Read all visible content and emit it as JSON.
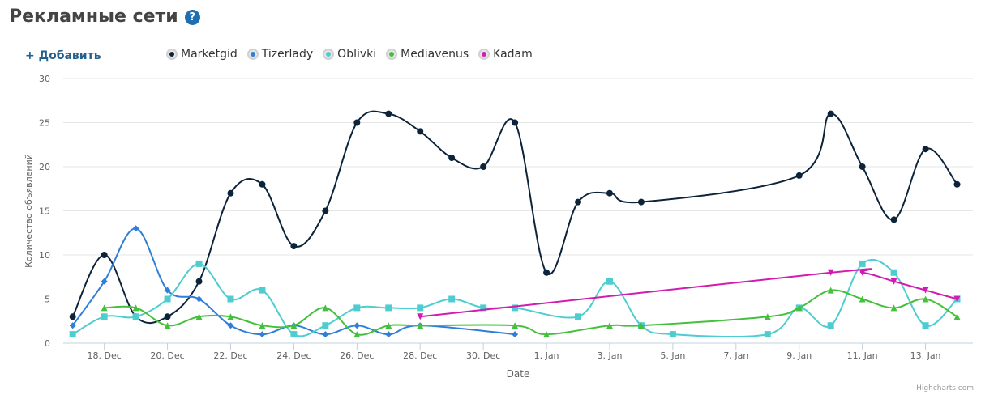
{
  "header": {
    "title": "Рекламные сети",
    "help_icon": "?"
  },
  "toolbar": {
    "add_label": "+ Добавить"
  },
  "credits": "Highcharts.com",
  "chart_data": {
    "type": "line",
    "xlabel": "Date",
    "ylabel": "Количество объявлений",
    "ylim": [
      0,
      30
    ],
    "yticks": [
      0,
      5,
      10,
      15,
      20,
      25,
      30
    ],
    "xlim": [
      16.7,
      45.5
    ],
    "xticks": [
      {
        "day": 18,
        "label": "18. Dec"
      },
      {
        "day": 20,
        "label": "20. Dec"
      },
      {
        "day": 22,
        "label": "22. Dec"
      },
      {
        "day": 24,
        "label": "24. Dec"
      },
      {
        "day": 26,
        "label": "26. Dec"
      },
      {
        "day": 28,
        "label": "28. Dec"
      },
      {
        "day": 30,
        "label": "30. Dec"
      },
      {
        "day": 32,
        "label": "1. Jan"
      },
      {
        "day": 34,
        "label": "3. Jan"
      },
      {
        "day": 36,
        "label": "5. Jan"
      },
      {
        "day": 38,
        "label": "7. Jan"
      },
      {
        "day": 40,
        "label": "9. Jan"
      },
      {
        "day": 42,
        "label": "11. Jan"
      },
      {
        "day": 44,
        "label": "13. Jan"
      }
    ],
    "grid": true,
    "legend_position": "top",
    "series": [
      {
        "name": "Marketgid",
        "color": "#0d233a",
        "marker": "circle",
        "points": [
          [
            17,
            3
          ],
          [
            18,
            10
          ],
          [
            19,
            3
          ],
          [
            20,
            3
          ],
          [
            21,
            7
          ],
          [
            22,
            17
          ],
          [
            23,
            18
          ],
          [
            24,
            11
          ],
          [
            25,
            15
          ],
          [
            26,
            25
          ],
          [
            27,
            26
          ],
          [
            28,
            24
          ],
          [
            29,
            21
          ],
          [
            30,
            20
          ],
          [
            31,
            25
          ],
          [
            32,
            8
          ],
          [
            33,
            16
          ],
          [
            34,
            17
          ],
          [
            35,
            16
          ],
          [
            40,
            19
          ],
          [
            41,
            26
          ],
          [
            42,
            20
          ],
          [
            43,
            14
          ],
          [
            44,
            22
          ],
          [
            45,
            18
          ]
        ]
      },
      {
        "name": "Tizerlady",
        "color": "#2f7ed8",
        "marker": "diamond",
        "points": [
          [
            17,
            2
          ],
          [
            18,
            7
          ],
          [
            19,
            13
          ],
          [
            20,
            6
          ],
          [
            21,
            5
          ],
          [
            22,
            2
          ],
          [
            23,
            1
          ],
          [
            24,
            2
          ],
          [
            25,
            1
          ],
          [
            26,
            2
          ],
          [
            27,
            1
          ],
          [
            28,
            2
          ],
          [
            31,
            1
          ]
        ]
      },
      {
        "name": "Oblivki",
        "color": "#4ecdd0",
        "marker": "square",
        "points": [
          [
            17,
            1
          ],
          [
            18,
            3
          ],
          [
            19,
            3
          ],
          [
            20,
            5
          ],
          [
            21,
            9
          ],
          [
            22,
            5
          ],
          [
            23,
            6
          ],
          [
            24,
            1
          ],
          [
            25,
            2
          ],
          [
            26,
            4
          ],
          [
            27,
            4
          ],
          [
            28,
            4
          ],
          [
            29,
            5
          ],
          [
            30,
            4
          ],
          [
            31,
            4
          ],
          [
            33,
            3
          ],
          [
            34,
            7
          ],
          [
            35,
            2
          ],
          [
            36,
            1
          ],
          [
            39,
            1
          ],
          [
            40,
            4
          ],
          [
            41,
            2
          ],
          [
            42,
            9
          ],
          [
            43,
            8
          ],
          [
            44,
            2
          ],
          [
            45,
            5
          ]
        ]
      },
      {
        "name": "Mediavenus",
        "color": "#44c03c",
        "marker": "triangle",
        "points": [
          [
            18,
            4
          ],
          [
            19,
            4
          ],
          [
            20,
            2
          ],
          [
            21,
            3
          ],
          [
            22,
            3
          ],
          [
            23,
            2
          ],
          [
            24,
            2
          ],
          [
            25,
            4
          ],
          [
            26,
            1
          ],
          [
            27,
            2
          ],
          [
            28,
            2
          ],
          [
            31,
            2
          ],
          [
            32,
            1
          ],
          [
            34,
            2
          ],
          [
            35,
            2
          ],
          [
            39,
            3
          ],
          [
            40,
            4
          ],
          [
            41,
            6
          ],
          [
            42,
            5
          ],
          [
            43,
            4
          ],
          [
            44,
            5
          ],
          [
            45,
            3
          ]
        ]
      },
      {
        "name": "Kadam",
        "color": "#d21bb0",
        "marker": "triangle-down",
        "points": [
          [
            28,
            3
          ],
          [
            41,
            8
          ],
          [
            42,
            8
          ],
          [
            43,
            7
          ],
          [
            44,
            6
          ],
          [
            45,
            5
          ]
        ]
      }
    ]
  }
}
